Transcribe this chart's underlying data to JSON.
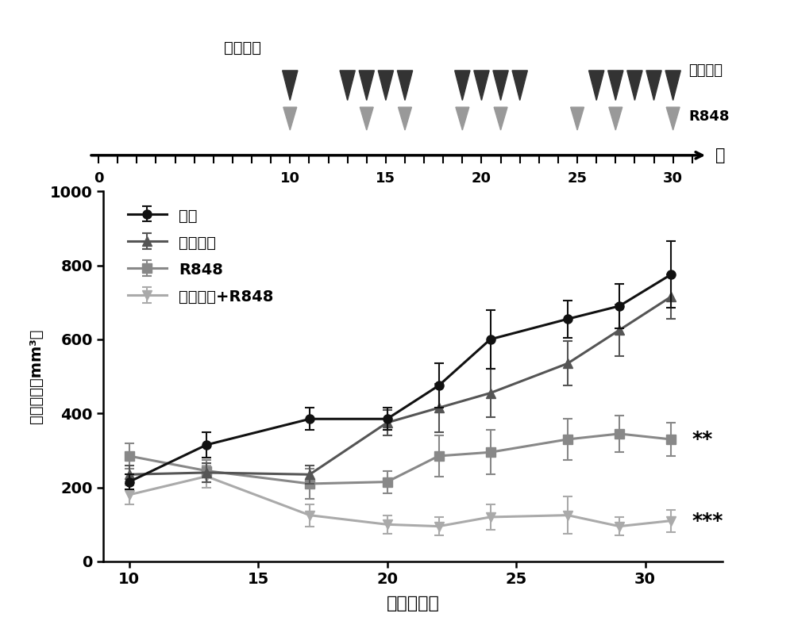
{
  "timeline": {
    "xmin": 0,
    "xmax": 32,
    "ticks": [
      0,
      10,
      15,
      20,
      25,
      30
    ],
    "label_tian": "天",
    "label_zhongliu": "肿瘾接种",
    "label_sorafenib_arrow": "索拉非尼",
    "label_R848_arrow": "R848",
    "sorafenib_days": [
      10,
      13,
      14,
      15,
      16,
      19,
      20,
      21,
      22,
      26,
      27,
      28,
      29,
      30
    ],
    "R848_days": [
      10,
      14,
      16,
      19,
      21,
      25,
      27,
      30
    ]
  },
  "plot": {
    "xdata": [
      10,
      13,
      17,
      20,
      22,
      24,
      27,
      29,
      31
    ],
    "vehicle_y": [
      215,
      315,
      385,
      385,
      475,
      600,
      655,
      690,
      775
    ],
    "vehicle_err": [
      20,
      35,
      30,
      30,
      60,
      80,
      50,
      60,
      90
    ],
    "sorafenib_y": [
      235,
      240,
      235,
      375,
      415,
      455,
      535,
      625,
      715
    ],
    "sorafenib_err": [
      25,
      25,
      25,
      35,
      65,
      65,
      60,
      70,
      60
    ],
    "R848_y": [
      285,
      245,
      210,
      215,
      285,
      295,
      330,
      345,
      330
    ],
    "R848_err": [
      35,
      30,
      40,
      30,
      55,
      60,
      55,
      50,
      45
    ],
    "combo_y": [
      180,
      230,
      125,
      100,
      95,
      120,
      125,
      95,
      110
    ],
    "combo_err": [
      25,
      30,
      30,
      25,
      25,
      35,
      50,
      25,
      30
    ],
    "ylim": [
      0,
      1000
    ],
    "yticks": [
      0,
      200,
      400,
      600,
      800,
      1000
    ],
    "xlim": [
      9,
      33
    ],
    "xticks": [
      10,
      15,
      20,
      25,
      30
    ],
    "xlabel": "接种后天数",
    "ylabel": "肿瘾体积（mm³）",
    "legend_vehicle": "载剂",
    "legend_sorafenib": "索拉非尼",
    "legend_R848": "R848",
    "legend_combo": "索拉非尼+R848",
    "color_vehicle": "#111111",
    "color_sorafenib": "#555555",
    "color_R848": "#888888",
    "color_combo": "#aaaaaa",
    "sig_R848": "**",
    "sig_combo": "***"
  }
}
